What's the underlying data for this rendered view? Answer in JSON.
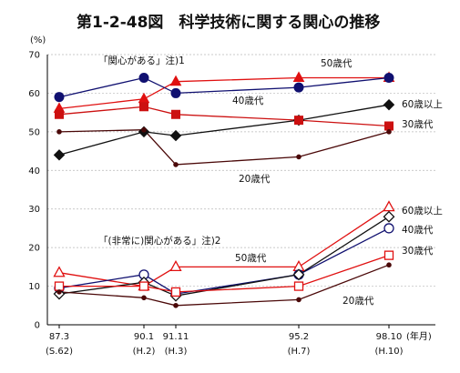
{
  "chart_data": {
    "type": "line",
    "title": "第1-2-48図　科学技術に関する関心の推移",
    "ylabel": "(%)",
    "xlabel": "(年月)",
    "ylim": [
      0,
      70
    ],
    "yticks": [
      0,
      10,
      20,
      30,
      40,
      50,
      60,
      70
    ],
    "x": [
      "87.3",
      "90.1",
      "91.11",
      "95.2",
      "98.10"
    ],
    "x_sublabels": [
      "(S.62)",
      "(H.2)",
      "(H.3)",
      "(H.7)",
      "(H.10)"
    ],
    "groups": [
      {
        "label": "「関心がある」注)1",
        "series": [
          {
            "name": "50歳代",
            "color": "#e01010",
            "marker": "triangle",
            "filled": true,
            "values": [
              56,
              58.5,
              63,
              64,
              64
            ]
          },
          {
            "name": "40歳代",
            "color": "#101070",
            "marker": "circle",
            "filled": true,
            "values": [
              59,
              64,
              60,
              61.5,
              64
            ]
          },
          {
            "name": "60歳以上",
            "color": "#111111",
            "marker": "diamond",
            "filled": true,
            "values": [
              44,
              50,
              49,
              53,
              57
            ]
          },
          {
            "name": "30歳代",
            "color": "#cc1010",
            "marker": "square",
            "filled": true,
            "values": [
              54.5,
              56.5,
              54.5,
              53,
              51.5
            ]
          },
          {
            "name": "20歳代",
            "color": "#4a0808",
            "marker": "dot",
            "filled": true,
            "values": [
              50,
              50.5,
              41.5,
              43.5,
              50
            ]
          }
        ]
      },
      {
        "label": "「(非常に)関心がある」注)2",
        "series": [
          {
            "name": "60歳以上",
            "color": "#e01010",
            "marker": "triangle",
            "filled": false,
            "values": [
              13.5,
              10,
              15,
              15,
              30.5
            ]
          },
          {
            "name": "40歳代",
            "color": "#101070",
            "marker": "circle",
            "filled": false,
            "values": [
              9.5,
              13,
              8,
              13,
              25
            ]
          },
          {
            "name": "50歳代",
            "color": "#111111",
            "marker": "diamond",
            "filled": false,
            "values": [
              8,
              11,
              7.5,
              13,
              28
            ]
          },
          {
            "name": "30歳代",
            "color": "#e01010",
            "marker": "square",
            "filled": false,
            "values": [
              10,
              10,
              8.5,
              10,
              18
            ]
          },
          {
            "name": "20歳代",
            "color": "#4a0808",
            "marker": "dot",
            "filled": true,
            "values": [
              8.5,
              7,
              5,
              6.5,
              15.5
            ]
          }
        ]
      }
    ]
  }
}
